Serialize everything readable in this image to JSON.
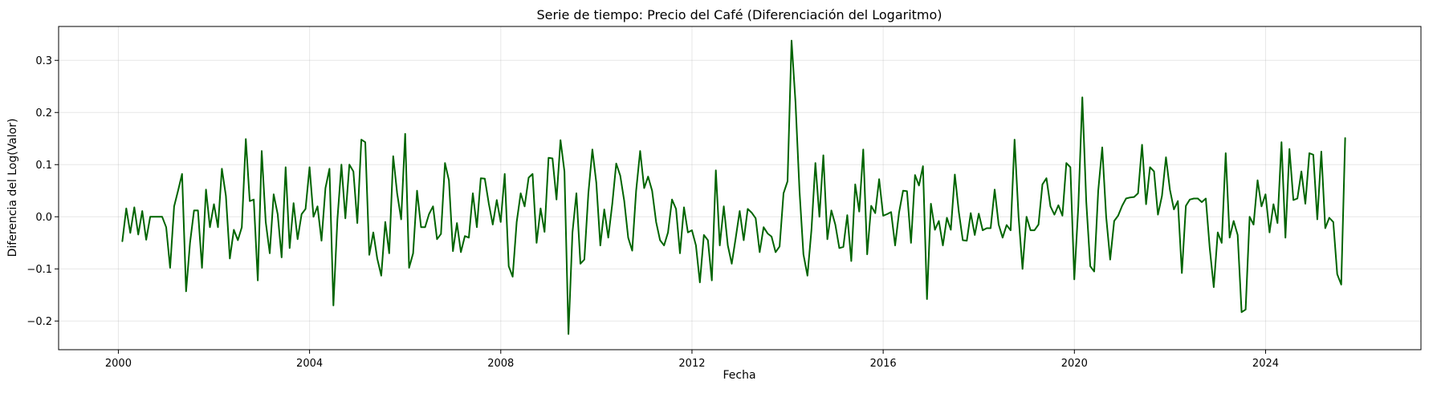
{
  "chart_data": {
    "type": "line",
    "title": "Serie de tiempo: Precio del Café (Diferenciación del Logaritmo)",
    "xlabel": "Fecha",
    "ylabel": "Diferencia del Log(Valor)",
    "xlim": [
      1998.75,
      2027.25
    ],
    "ylim": [
      -0.255,
      0.365
    ],
    "xticks": [
      2000,
      2004,
      2008,
      2012,
      2016,
      2020,
      2024
    ],
    "xtick_labels": [
      "2000",
      "2004",
      "2008",
      "2012",
      "2016",
      "2020",
      "2024"
    ],
    "yticks": [
      -0.2,
      -0.1,
      0.0,
      0.1,
      0.2,
      0.3
    ],
    "ytick_labels": [
      "−0.2",
      "−0.1",
      "0.0",
      "0.1",
      "0.2",
      "0.3"
    ],
    "grid": true,
    "legend": "none",
    "series": [
      {
        "name": "Diferencia del Log(Valor)",
        "color": "#006400",
        "start": 2000.083,
        "step": 0.08333,
        "values": [
          -0.047,
          0.016,
          -0.031,
          0.018,
          -0.034,
          0.011,
          -0.044,
          0.0,
          0.0,
          0.0,
          0.0,
          -0.02,
          -0.098,
          0.02,
          0.05,
          0.082,
          -0.143,
          -0.05,
          0.012,
          0.012,
          -0.098,
          0.052,
          -0.02,
          0.024,
          -0.02,
          0.092,
          0.04,
          -0.08,
          -0.025,
          -0.045,
          -0.02,
          0.149,
          0.03,
          0.033,
          -0.122,
          0.126,
          -0.01,
          -0.07,
          0.043,
          0.005,
          -0.078,
          0.095,
          -0.06,
          0.026,
          -0.043,
          0.005,
          0.015,
          0.095,
          0.0,
          0.02,
          -0.046,
          0.055,
          0.092,
          -0.17,
          -0.005,
          0.1,
          -0.003,
          0.1,
          0.087,
          -0.012,
          0.148,
          0.143,
          -0.073,
          -0.03,
          -0.08,
          -0.113,
          -0.01,
          -0.07,
          0.116,
          0.045,
          -0.005,
          0.159,
          -0.098,
          -0.07,
          0.05,
          -0.02,
          -0.02,
          0.005,
          0.02,
          -0.043,
          -0.033,
          0.103,
          0.07,
          -0.066,
          -0.012,
          -0.068,
          -0.037,
          -0.04,
          0.045,
          -0.02,
          0.074,
          0.073,
          0.025,
          -0.015,
          0.032,
          -0.01,
          0.082,
          -0.095,
          -0.115,
          -0.01,
          0.045,
          0.02,
          0.075,
          0.082,
          -0.05,
          0.016,
          -0.029,
          0.113,
          0.112,
          0.033,
          0.147,
          0.087,
          -0.225,
          -0.03,
          0.045,
          -0.09,
          -0.082,
          0.045,
          0.129,
          0.065,
          -0.055,
          0.014,
          -0.04,
          0.025,
          0.102,
          0.079,
          0.03,
          -0.04,
          -0.065,
          0.05,
          0.126,
          0.055,
          0.077,
          0.05,
          -0.01,
          -0.045,
          -0.055,
          -0.03,
          0.033,
          0.015,
          -0.07,
          0.018,
          -0.03,
          -0.026,
          -0.055,
          -0.126,
          -0.035,
          -0.045,
          -0.122,
          0.089,
          -0.055,
          0.02,
          -0.055,
          -0.09,
          -0.04,
          0.011,
          -0.045,
          0.015,
          0.008,
          -0.003,
          -0.068,
          -0.02,
          -0.032,
          -0.038,
          -0.068,
          -0.057,
          0.045,
          0.068,
          0.338,
          0.22,
          0.05,
          -0.072,
          -0.113,
          -0.025,
          0.103,
          0.0,
          0.118,
          -0.043,
          0.012,
          -0.015,
          -0.06,
          -0.058,
          0.003,
          -0.085,
          0.062,
          0.01,
          0.129,
          -0.072,
          0.021,
          0.007,
          0.072,
          0.002,
          0.005,
          0.009,
          -0.055,
          0.008,
          0.05,
          0.049,
          -0.05,
          0.08,
          0.06,
          0.097,
          -0.158,
          0.025,
          -0.025,
          -0.008,
          -0.055,
          -0.002,
          -0.025,
          0.081,
          0.01,
          -0.045,
          -0.046,
          0.007,
          -0.035,
          0.006,
          -0.026,
          -0.022,
          -0.022,
          0.052,
          -0.015,
          -0.04,
          -0.016,
          -0.026,
          0.148,
          0.0,
          -0.1,
          0.0,
          -0.026,
          -0.026,
          -0.015,
          0.062,
          0.074,
          0.02,
          0.004,
          0.022,
          0.002,
          0.103,
          0.095,
          -0.12,
          0.02,
          0.229,
          0.029,
          -0.095,
          -0.105,
          0.05,
          0.133,
          0.0,
          -0.082,
          -0.008,
          0.002,
          0.021,
          0.035,
          0.037,
          0.038,
          0.045,
          0.138,
          0.024,
          0.095,
          0.087,
          0.004,
          0.04,
          0.114,
          0.052,
          0.014,
          0.03,
          -0.108,
          0.021,
          0.033,
          0.035,
          0.035,
          0.028,
          0.035,
          -0.06,
          -0.135,
          -0.03,
          -0.05,
          0.122,
          -0.04,
          -0.008,
          -0.035,
          -0.183,
          -0.178,
          0.0,
          -0.015,
          0.07,
          0.02,
          0.043,
          -0.03,
          0.024,
          -0.012,
          0.143,
          -0.04,
          0.13,
          0.032,
          0.035,
          0.087,
          0.025,
          0.122,
          0.119,
          -0.005,
          0.125,
          -0.022,
          -0.002,
          -0.01,
          -0.11,
          -0.13,
          0.151
        ]
      }
    ]
  }
}
